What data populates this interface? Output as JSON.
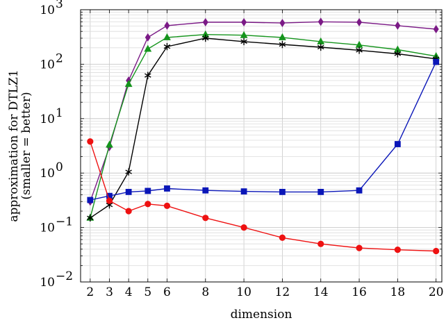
{
  "chart_data": {
    "type": "line",
    "xlabel": "dimension",
    "ylabel": "approximation for DTLZ1",
    "ylabel_sub": "(smaller = better)",
    "y_scale": "log",
    "ylim": [
      0.01,
      1000
    ],
    "xlim": [
      1.5,
      20.3
    ],
    "x_ticks": [
      2,
      3,
      4,
      5,
      6,
      8,
      10,
      12,
      14,
      16,
      18,
      20
    ],
    "y_ticks": [
      {
        "value": 0.01,
        "base": "10",
        "exp": "−2"
      },
      {
        "value": 0.1,
        "base": "10",
        "exp": "−1"
      },
      {
        "value": 1,
        "base": "10",
        "exp": "0"
      },
      {
        "value": 10,
        "base": "10",
        "exp": "1"
      },
      {
        "value": 100,
        "base": "10",
        "exp": "2"
      },
      {
        "value": 1000,
        "base": "10",
        "exp": "3"
      }
    ],
    "grid": true,
    "legend": "none",
    "series": [
      {
        "color": "#7b1a86",
        "marker": "diamond",
        "x": [
          2,
          3,
          4,
          5,
          6,
          8,
          10,
          12,
          14,
          16,
          18,
          20
        ],
        "y": [
          0.3,
          3,
          50,
          310,
          510,
          590,
          590,
          570,
          600,
          590,
          510,
          440
        ]
      },
      {
        "color": "#14941c",
        "marker": "triangle",
        "x": [
          2,
          3,
          4,
          5,
          6,
          8,
          10,
          12,
          14,
          16,
          18,
          20
        ],
        "y": [
          0.15,
          3.3,
          43,
          190,
          310,
          350,
          340,
          310,
          260,
          225,
          185,
          140
        ]
      },
      {
        "color": "#000000",
        "marker": "star",
        "x": [
          2,
          3,
          4,
          5,
          6,
          8,
          10,
          12,
          14,
          16,
          18,
          20
        ],
        "y": [
          0.15,
          0.26,
          1.05,
          62,
          210,
          300,
          260,
          230,
          205,
          180,
          155,
          125
        ]
      },
      {
        "color": "#0a16b8",
        "marker": "square",
        "x": [
          2,
          3,
          4,
          5,
          6,
          8,
          10,
          12,
          14,
          16,
          18,
          20
        ],
        "y": [
          0.32,
          0.38,
          0.45,
          0.47,
          0.52,
          0.48,
          0.46,
          0.45,
          0.45,
          0.48,
          3.4,
          110
        ]
      },
      {
        "color": "#ee1111",
        "marker": "circle",
        "x": [
          2,
          3,
          4,
          5,
          6,
          8,
          10,
          12,
          14,
          16,
          18,
          20
        ],
        "y": [
          3.8,
          0.31,
          0.2,
          0.27,
          0.25,
          0.15,
          0.1,
          0.065,
          0.05,
          0.042,
          0.039,
          0.037
        ]
      }
    ]
  }
}
